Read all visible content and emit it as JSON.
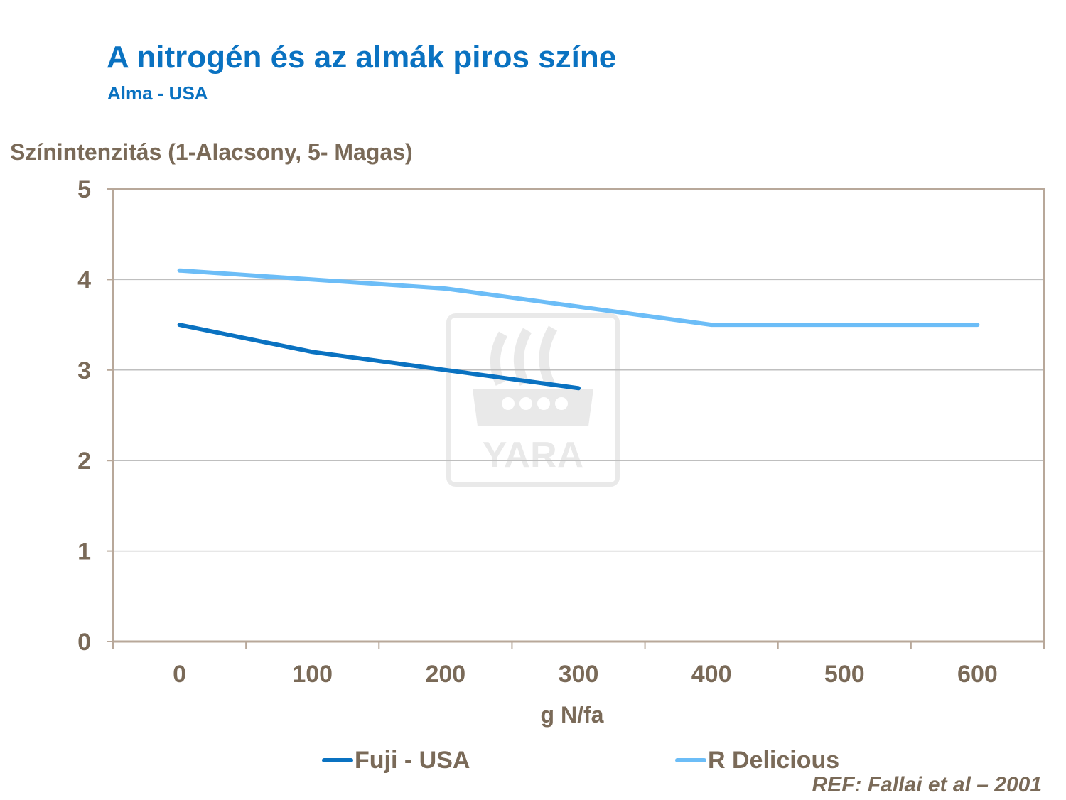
{
  "title": "A nitrogén és az almák piros színe",
  "subtitle": "Alma - USA",
  "reference": "REF: Fallai et al – 2001",
  "watermark": "YARA",
  "colors": {
    "text": "#7a6a58",
    "title": "#0a72c1",
    "grid": "#bfbfbf",
    "axis": "#b8a89a"
  },
  "chart_data": {
    "type": "line",
    "title": "",
    "ylabel": "Színintenzitás (1-Alacsony, 5- Magas)",
    "xlabel": "g N/fa",
    "x": [
      0,
      100,
      200,
      300,
      400,
      500,
      600
    ],
    "x_tick_labels": [
      "0",
      "100",
      "200",
      "300",
      "400",
      "500",
      "600"
    ],
    "y_ticks": [
      "0",
      "1",
      "2",
      "3",
      "4",
      "5"
    ],
    "ylim": [
      0,
      5
    ],
    "grid": true,
    "legend_position": "bottom",
    "series": [
      {
        "name": "Fuji - USA",
        "color": "#0a72c1",
        "values": [
          3.5,
          3.2,
          3.0,
          2.8,
          null,
          null,
          null
        ]
      },
      {
        "name": "R Delicious",
        "color": "#6cbdf7",
        "values": [
          4.1,
          4.0,
          3.9,
          3.7,
          3.5,
          3.5,
          3.5
        ]
      }
    ]
  }
}
